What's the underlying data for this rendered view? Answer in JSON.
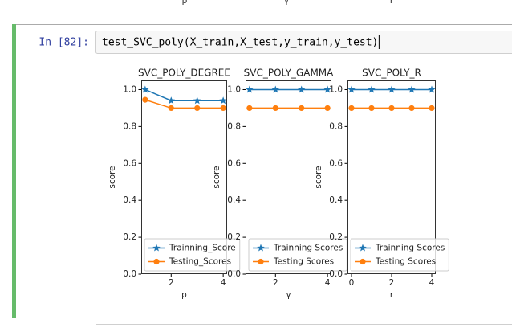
{
  "top_fragment": {
    "labels": [
      "p",
      "γ",
      "r"
    ]
  },
  "cell": {
    "prompt": "In [82]:",
    "code": "test_SVC_poly(X_train,X_test,y_train,y_test)"
  },
  "chart_data": [
    {
      "type": "line",
      "title": "SVC_POLY_DEGREE",
      "x": [
        1,
        2,
        3,
        4
      ],
      "series": [
        {
          "name": "Trainning_Score",
          "color": "#1f77b4",
          "marker": "star",
          "values": [
            1.0,
            0.94,
            0.94,
            0.94
          ]
        },
        {
          "name": "Testing_Scores",
          "color": "#ff7f0e",
          "marker": "circle",
          "values": [
            0.945,
            0.9,
            0.9,
            0.9
          ]
        }
      ],
      "xlabel": "p",
      "ylabel": "score",
      "xlim": [
        0.85,
        4.15
      ],
      "ylim": [
        0,
        1.05
      ],
      "xticks": [
        2,
        4
      ],
      "yticks": [
        {
          "value": 0,
          "label": "0.0"
        },
        0.2,
        0.4,
        0.6,
        0.8,
        {
          "value": 1,
          "label": "1.0"
        }
      ],
      "legend": "lower left"
    },
    {
      "type": "line",
      "title": "SVC_POLY_GAMMA",
      "x": [
        1,
        2,
        3,
        4
      ],
      "series": [
        {
          "name": "Trainning Scores",
          "color": "#1f77b4",
          "marker": "star",
          "values": [
            1.0,
            1.0,
            1.0,
            1.0
          ]
        },
        {
          "name": "Testing Scores",
          "color": "#ff7f0e",
          "marker": "circle",
          "values": [
            0.9,
            0.9,
            0.9,
            0.9
          ]
        }
      ],
      "xlabel": "γ",
      "ylabel": "score",
      "xlim": [
        0.85,
        4.15
      ],
      "ylim": [
        0,
        1.05
      ],
      "xticks": [
        2,
        4
      ],
      "yticks": [
        {
          "value": 0,
          "label": "0.0"
        },
        0.2,
        0.4,
        0.6,
        0.8,
        {
          "value": 1,
          "label": "1.0"
        }
      ],
      "legend": "lower left"
    },
    {
      "type": "line",
      "title": "SVC_POLY_R",
      "x": [
        0,
        1,
        2,
        3,
        4
      ],
      "series": [
        {
          "name": "Trainning Scores",
          "color": "#1f77b4",
          "marker": "star",
          "values": [
            1.0,
            1.0,
            1.0,
            1.0,
            1.0
          ]
        },
        {
          "name": "Testing Scores",
          "color": "#ff7f0e",
          "marker": "circle",
          "values": [
            0.9,
            0.9,
            0.9,
            0.9,
            0.9
          ]
        }
      ],
      "xlabel": "r",
      "ylabel": "score",
      "xlim": [
        -0.2,
        4.2
      ],
      "ylim": [
        0,
        1.05
      ],
      "xticks": [
        0,
        2,
        4
      ],
      "yticks": [
        {
          "value": 0,
          "label": "0.0"
        },
        0.2,
        0.4,
        0.6,
        0.8,
        {
          "value": 1,
          "label": "1.0"
        }
      ],
      "legend": "lower left"
    }
  ]
}
